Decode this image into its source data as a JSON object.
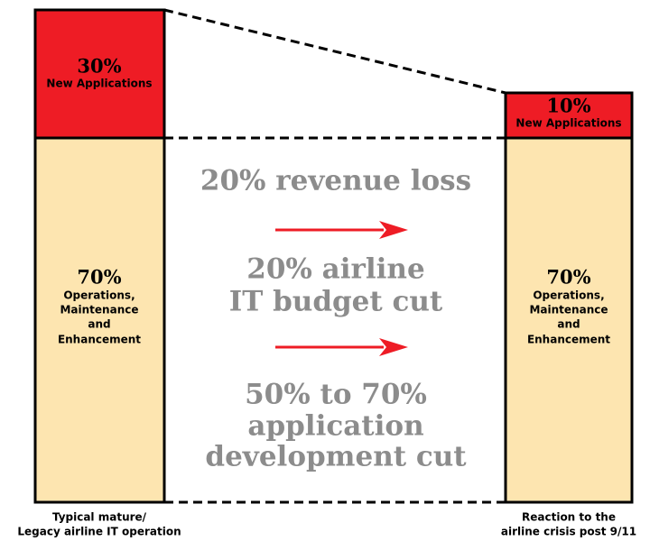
{
  "left_bar": {
    "top": {
      "percent": "30%",
      "label": "New Applications"
    },
    "bottom": {
      "percent": "70%",
      "label_lines": [
        "Operations,",
        "Maintenance",
        "and",
        "Enhancement"
      ]
    },
    "caption_lines": [
      "Typical mature/",
      "Legacy airline IT operation"
    ]
  },
  "right_bar": {
    "top": {
      "percent": "10%",
      "label": "New Applications"
    },
    "bottom": {
      "percent": "70%",
      "label_lines": [
        "Operations,",
        "Maintenance",
        "and",
        "Enhancement"
      ]
    },
    "caption_lines": [
      "Reaction to the",
      "airline crisis post 9/11"
    ]
  },
  "center": {
    "statements": [
      [
        "20% revenue loss"
      ],
      [
        "20% airline",
        "IT budget cut"
      ],
      [
        "50% to 70%",
        "application",
        "development cut"
      ]
    ]
  }
}
